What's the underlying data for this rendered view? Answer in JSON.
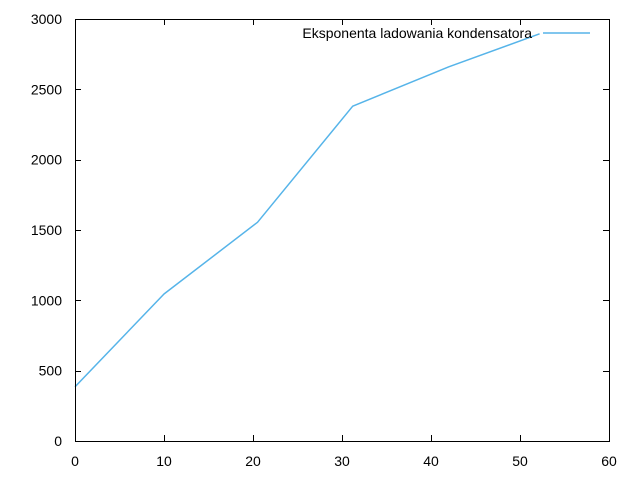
{
  "chart_data": {
    "type": "line",
    "title": "",
    "xlabel": "",
    "ylabel": "",
    "xlim": [
      0,
      60
    ],
    "ylim": [
      0,
      3000
    ],
    "x_ticks": [
      0,
      10,
      20,
      30,
      40,
      50,
      60
    ],
    "y_ticks": [
      0,
      500,
      1000,
      1500,
      2000,
      2500,
      3000
    ],
    "x_tick_labels": [
      "0",
      "10",
      "20",
      "30",
      "40",
      "50",
      "60"
    ],
    "y_tick_labels": [
      "0",
      "500",
      "1000",
      "1500",
      "2000",
      "2500",
      "3000"
    ],
    "grid": false,
    "legend_position": "top-right",
    "series": [
      {
        "name": "Eksponenta ladowania kondensatora",
        "color": "#56b4e9",
        "x": [
          0,
          10,
          20.5,
          31.2,
          42,
          52.2
        ],
        "y": [
          385,
          1045,
          1555,
          2380,
          2660,
          2895
        ]
      }
    ]
  }
}
